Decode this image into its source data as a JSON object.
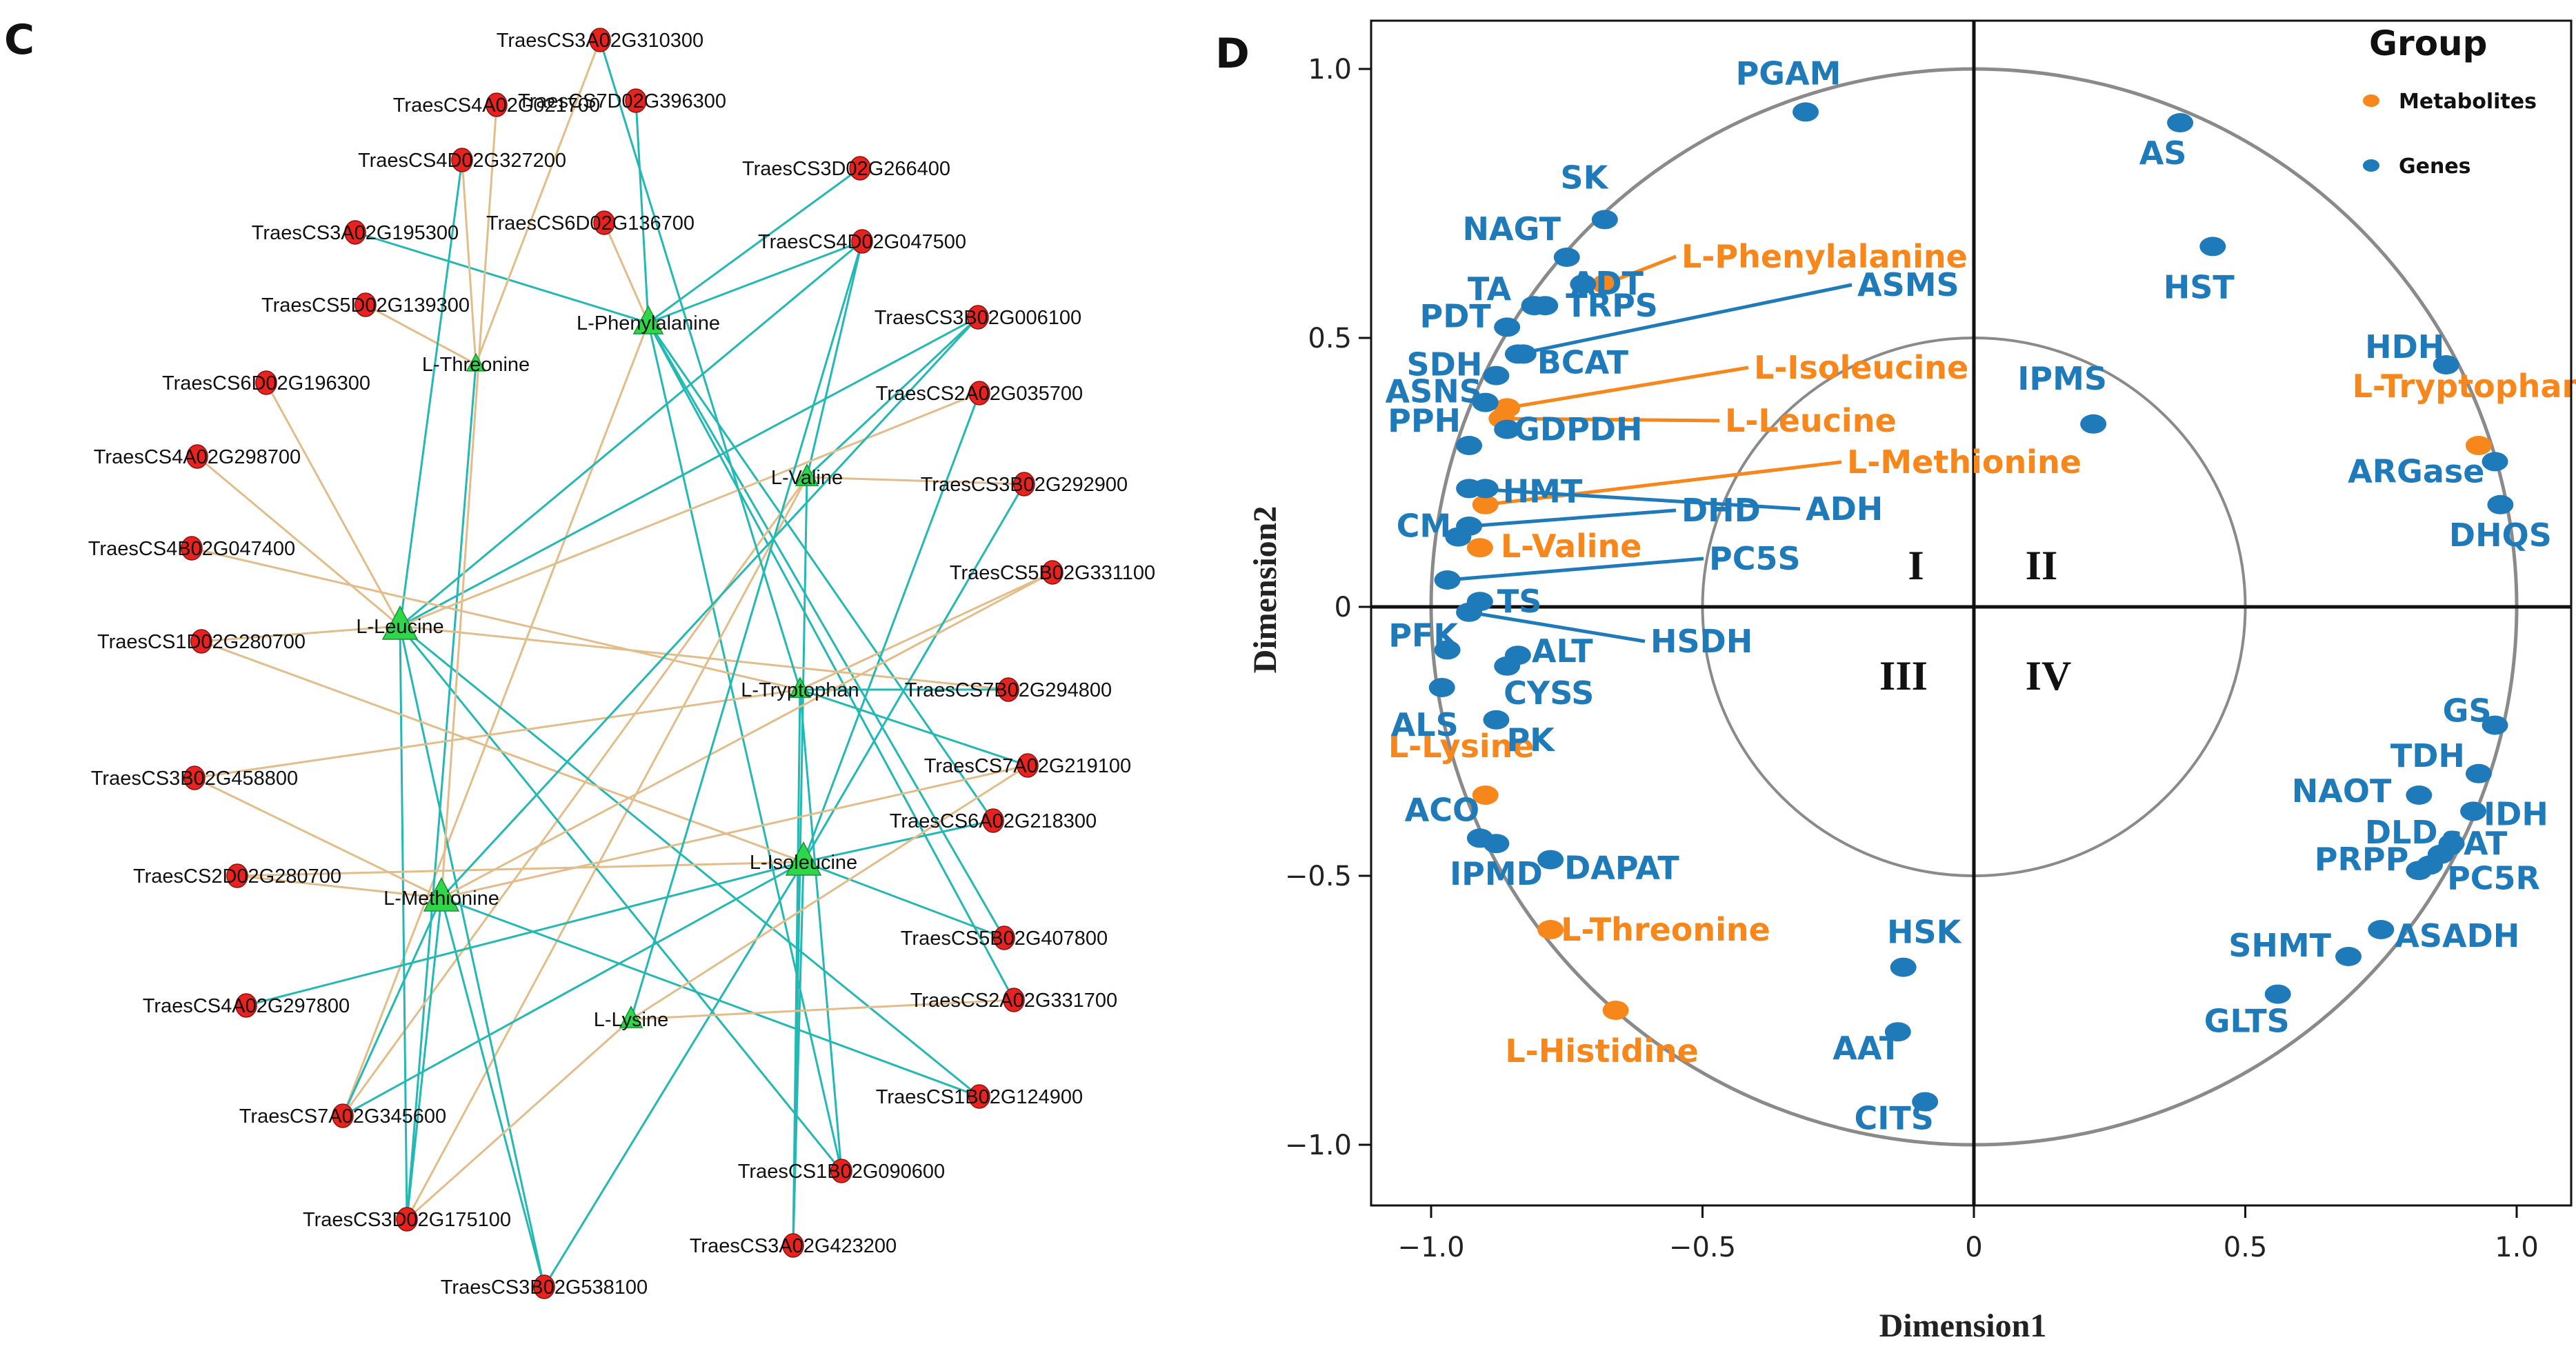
{
  "chart_data": [
    {
      "type": "network",
      "panel": "C",
      "colors": {
        "gene_node": "#e8231f",
        "metabolite_node": "#2fd64a",
        "edge_positive": "#e2bd8a",
        "edge_negative": "#23b8b3"
      },
      "metabolites": [
        "L-Phenylalanine",
        "L-Threonine",
        "L-Valine",
        "L-Leucine",
        "L-Tryptophan",
        "L-Isoleucine",
        "L-Methionine",
        "L-Lysine"
      ],
      "genes": [
        "TraesCS3A02G310300",
        "TraesCS4A02G021700",
        "TraesCS7D02G396300",
        "TraesCS4D02G327200",
        "TraesCS3D02G266400",
        "TraesCS3A02G195300",
        "TraesCS6D02G136700",
        "TraesCS4D02G047500",
        "TraesCS5D02G139300",
        "TraesCS3B02G006100",
        "TraesCS6D02G196300",
        "TraesCS2A02G035700",
        "TraesCS4A02G298700",
        "TraesCS3B02G292900",
        "TraesCS4B02G047400",
        "TraesCS5B02G331100",
        "TraesCS1D02G280700",
        "TraesCS7B02G294800",
        "TraesCS7A02G219100",
        "TraesCS3B02G458800",
        "TraesCS6A02G218300",
        "TraesCS2D02G280700",
        "TraesCS5B02G407800",
        "TraesCS4A02G297800",
        "TraesCS2A02G331700",
        "TraesCS1B02G124900",
        "TraesCS7A02G345600",
        "TraesCS1B02G090600",
        "TraesCS3D02G175100",
        "TraesCS3A02G423200",
        "TraesCS3B02G538100"
      ],
      "edges": [
        [
          "L-Phenylalanine",
          "TraesCS7D02G396300",
          "negative"
        ],
        [
          "L-Phenylalanine",
          "TraesCS3D02G266400",
          "negative"
        ],
        [
          "L-Phenylalanine",
          "TraesCS6D02G136700",
          "positive"
        ],
        [
          "L-Phenylalanine",
          "TraesCS4D02G047500",
          "negative"
        ],
        [
          "L-Phenylalanine",
          "TraesCS3A02G195300",
          "negative"
        ],
        [
          "L-Phenylalanine",
          "TraesCS6A02G218300",
          "negative"
        ],
        [
          "L-Phenylalanine",
          "TraesCS1B02G090600",
          "negative"
        ],
        [
          "L-Phenylalanine",
          "TraesCS2A02G331700",
          "negative"
        ],
        [
          "L-Phenylalanine",
          "TraesCS5B02G407800",
          "negative"
        ],
        [
          "L-Phenylalanine",
          "TraesCS7A02G345600",
          "positive"
        ],
        [
          "L-Threonine",
          "TraesCS3A02G310300",
          "positive"
        ],
        [
          "L-Threonine",
          "TraesCS4D02G327200",
          "positive"
        ],
        [
          "L-Threonine",
          "TraesCS5D02G139300",
          "positive"
        ],
        [
          "L-Threonine",
          "TraesCS3D02G175100",
          "negative"
        ],
        [
          "L-Valine",
          "TraesCS3B02G006100",
          "negative"
        ],
        [
          "L-Valine",
          "TraesCS3B02G292900",
          "positive"
        ],
        [
          "L-Valine",
          "TraesCS7A02G345600",
          "positive"
        ],
        [
          "L-Valine",
          "TraesCS3D02G175100",
          "positive"
        ],
        [
          "L-Valine",
          "TraesCS4D02G047500",
          "negative"
        ],
        [
          "L-Valine",
          "TraesCS3A02G423200",
          "negative"
        ],
        [
          "L-Leucine",
          "TraesCS4D02G327200",
          "negative"
        ],
        [
          "L-Leucine",
          "TraesCS4A02G298700",
          "positive"
        ],
        [
          "L-Leucine",
          "TraesCS6D02G196300",
          "positive"
        ],
        [
          "L-Leucine",
          "TraesCS1D02G280700",
          "positive"
        ],
        [
          "L-Leucine",
          "TraesCS7B02G294800",
          "positive"
        ],
        [
          "L-Leucine",
          "TraesCS4D02G047500",
          "negative"
        ],
        [
          "L-Leucine",
          "TraesCS3B02G006100",
          "negative"
        ],
        [
          "L-Leucine",
          "TraesCS2A02G035700",
          "positive"
        ],
        [
          "L-Leucine",
          "TraesCS1B02G124900",
          "negative"
        ],
        [
          "L-Leucine",
          "TraesCS1B02G090600",
          "negative"
        ],
        [
          "L-Leucine",
          "TraesCS3D02G175100",
          "negative"
        ],
        [
          "L-Leucine",
          "TraesCS3B02G538100",
          "negative"
        ],
        [
          "L-Tryptophan",
          "TraesCS3A02G310300",
          "negative"
        ],
        [
          "L-Tryptophan",
          "TraesCS5B02G331100",
          "positive"
        ],
        [
          "L-Tryptophan",
          "TraesCS7B02G294800",
          "negative"
        ],
        [
          "L-Tryptophan",
          "TraesCS7A02G219100",
          "negative"
        ],
        [
          "L-Tryptophan",
          "TraesCS4B02G047400",
          "positive"
        ],
        [
          "L-Tryptophan",
          "TraesCS3A02G423200",
          "negative"
        ],
        [
          "L-Tryptophan",
          "TraesCS1B02G090600",
          "negative"
        ],
        [
          "L-Tryptophan",
          "TraesCS3B02G458800",
          "positive"
        ],
        [
          "L-Isoleucine",
          "TraesCS2A02G035700",
          "negative"
        ],
        [
          "L-Isoleucine",
          "TraesCS3B02G292900",
          "negative"
        ],
        [
          "L-Isoleucine",
          "TraesCS6A02G218300",
          "negative"
        ],
        [
          "L-Isoleucine",
          "TraesCS5B02G407800",
          "negative"
        ],
        [
          "L-Isoleucine",
          "TraesCS2D02G280700",
          "positive"
        ],
        [
          "L-Isoleucine",
          "TraesCS4A02G297800",
          "negative"
        ],
        [
          "L-Isoleucine",
          "TraesCS7A02G345600",
          "negative"
        ],
        [
          "L-Isoleucine",
          "TraesCS3A02G423200",
          "negative"
        ],
        [
          "L-Isoleucine",
          "TraesCS3B02G538100",
          "negative"
        ],
        [
          "L-Isoleucine",
          "TraesCS1D02G280700",
          "positive"
        ],
        [
          "L-Methionine",
          "TraesCS3B02G458800",
          "positive"
        ],
        [
          "L-Methionine",
          "TraesCS2D02G280700",
          "positive"
        ],
        [
          "L-Methionine",
          "TraesCS7A02G345600",
          "negative"
        ],
        [
          "L-Methionine",
          "TraesCS3D02G175100",
          "negative"
        ],
        [
          "L-Methionine",
          "TraesCS5B02G331100",
          "positive"
        ],
        [
          "L-Methionine",
          "TraesCS3B02G006100",
          "negative"
        ],
        [
          "L-Methionine",
          "TraesCS7A02G219100",
          "positive"
        ],
        [
          "L-Methionine",
          "TraesCS1B02G124900",
          "negative"
        ],
        [
          "L-Methionine",
          "TraesCS4A02G021700",
          "positive"
        ],
        [
          "L-Methionine",
          "TraesCS3B02G538100",
          "negative"
        ],
        [
          "L-Lysine",
          "TraesCS2A02G331700",
          "positive"
        ],
        [
          "L-Lysine",
          "TraesCS7A02G219100",
          "positive"
        ],
        [
          "L-Lysine",
          "TraesCS4D02G047500",
          "negative"
        ],
        [
          "L-Lysine",
          "TraesCS3D02G175100",
          "positive"
        ]
      ]
    },
    {
      "type": "scatter",
      "panel": "D",
      "title": "",
      "xlabel": "Dimension1",
      "ylabel": "Dimension2",
      "xlim": [
        -1.08,
        1.08
      ],
      "ylim": [
        -1.12,
        1.1
      ],
      "xticks": [
        -1.0,
        -0.5,
        0,
        0.5,
        1.0
      ],
      "xtick_labels": [
        "−1.0",
        "−0.5",
        "0",
        "0.5",
        "1.0"
      ],
      "yticks": [
        1.0,
        0.5,
        0,
        -0.5,
        -1.0
      ],
      "ytick_labels": [
        "1.0",
        "0.5",
        "0",
        "−0.5",
        "−1.0"
      ],
      "circles": [
        1.0,
        0.5
      ],
      "quadrant_labels": [
        "I",
        "II",
        "III",
        "IV"
      ],
      "legend": {
        "title": "Group",
        "entries": [
          {
            "name": "Metabolites",
            "color": "#f7861b"
          },
          {
            "name": "Genes",
            "color": "#1e7ab8"
          }
        ],
        "position": "top-right"
      },
      "series": [
        {
          "name": "Metabolites",
          "color": "#f7861b",
          "points": [
            {
              "label": "L-Phenylalanine",
              "x": -0.68,
              "y": 0.6
            },
            {
              "label": "L-Isoleucine",
              "x": -0.86,
              "y": 0.37
            },
            {
              "label": "L-Leucine",
              "x": -0.87,
              "y": 0.35
            },
            {
              "label": "L-Methionine",
              "x": -0.9,
              "y": 0.19
            },
            {
              "label": "L-Valine",
              "x": -0.91,
              "y": 0.11
            },
            {
              "label": "L-Tryptophan",
              "x": 0.93,
              "y": 0.3
            },
            {
              "label": "L-Lysine",
              "x": -0.9,
              "y": -0.35
            },
            {
              "label": "L-Threonine",
              "x": -0.78,
              "y": -0.6
            },
            {
              "label": "L-Histidine",
              "x": -0.66,
              "y": -0.75
            }
          ]
        },
        {
          "name": "Genes",
          "color": "#1e7ab8",
          "points": [
            {
              "label": "PGAM",
              "x": -0.31,
              "y": 0.92
            },
            {
              "label": "SK",
              "x": -0.68,
              "y": 0.72
            },
            {
              "label": "NAGT",
              "x": -0.75,
              "y": 0.65
            },
            {
              "label": "ADT",
              "x": -0.72,
              "y": 0.6
            },
            {
              "label": "TA",
              "x": -0.81,
              "y": 0.56
            },
            {
              "label": "TRPS",
              "x": -0.79,
              "y": 0.56
            },
            {
              "label": "PDT",
              "x": -0.86,
              "y": 0.52
            },
            {
              "label": "ASMS",
              "x": -0.84,
              "y": 0.47
            },
            {
              "label": "BCAT",
              "x": -0.83,
              "y": 0.47
            },
            {
              "label": "SDH",
              "x": -0.88,
              "y": 0.43
            },
            {
              "label": "ASNS",
              "x": -0.9,
              "y": 0.38
            },
            {
              "label": "GDPDH",
              "x": -0.86,
              "y": 0.33
            },
            {
              "label": "PPH",
              "x": -0.93,
              "y": 0.3
            },
            {
              "label": "HMT",
              "x": -0.9,
              "y": 0.22
            },
            {
              "label": "ADH",
              "x": -0.93,
              "y": 0.22
            },
            {
              "label": "DHD",
              "x": -0.93,
              "y": 0.15
            },
            {
              "label": "CM",
              "x": -0.95,
              "y": 0.13
            },
            {
              "label": "PC5S",
              "x": -0.97,
              "y": 0.05
            },
            {
              "label": "TS",
              "x": -0.91,
              "y": 0.01
            },
            {
              "label": "HSDH",
              "x": -0.93,
              "y": -0.01
            },
            {
              "label": "PFK",
              "x": -0.97,
              "y": -0.08
            },
            {
              "label": "ALT",
              "x": -0.84,
              "y": -0.09
            },
            {
              "label": "CYSS",
              "x": -0.86,
              "y": -0.11
            },
            {
              "label": "ALS",
              "x": -0.98,
              "y": -0.15
            },
            {
              "label": "PK",
              "x": -0.88,
              "y": -0.21
            },
            {
              "label": "ACO",
              "x": -0.91,
              "y": -0.43
            },
            {
              "label": "IPMD",
              "x": -0.88,
              "y": -0.44
            },
            {
              "label": "DAPAT",
              "x": -0.78,
              "y": -0.47
            },
            {
              "label": "HSK",
              "x": -0.13,
              "y": -0.67
            },
            {
              "label": "AAT",
              "x": -0.14,
              "y": -0.79
            },
            {
              "label": "CITS",
              "x": -0.09,
              "y": -0.92
            },
            {
              "label": "AS",
              "x": 0.38,
              "y": 0.9
            },
            {
              "label": "HST",
              "x": 0.44,
              "y": 0.67
            },
            {
              "label": "IPMS",
              "x": 0.22,
              "y": 0.34
            },
            {
              "label": "HDH",
              "x": 0.87,
              "y": 0.45
            },
            {
              "label": "ARGase",
              "x": 0.96,
              "y": 0.27
            },
            {
              "label": "DHQS",
              "x": 0.97,
              "y": 0.19
            },
            {
              "label": "GS",
              "x": 0.96,
              "y": -0.22
            },
            {
              "label": "TDH",
              "x": 0.93,
              "y": -0.31
            },
            {
              "label": "NAOT",
              "x": 0.82,
              "y": -0.35
            },
            {
              "label": "IDH",
              "x": 0.92,
              "y": -0.38
            },
            {
              "label": "DLD",
              "x": 0.88,
              "y": -0.44
            },
            {
              "label": "SAT",
              "x": 0.86,
              "y": -0.46
            },
            {
              "label": "PRPP",
              "x": 0.82,
              "y": -0.49
            },
            {
              "label": "PC5R",
              "x": 0.84,
              "y": -0.48
            },
            {
              "label": "SHMT",
              "x": 0.69,
              "y": -0.65
            },
            {
              "label": "ASADH",
              "x": 0.75,
              "y": -0.6
            },
            {
              "label": "GLTS",
              "x": 0.56,
              "y": -0.72
            }
          ]
        }
      ]
    }
  ]
}
